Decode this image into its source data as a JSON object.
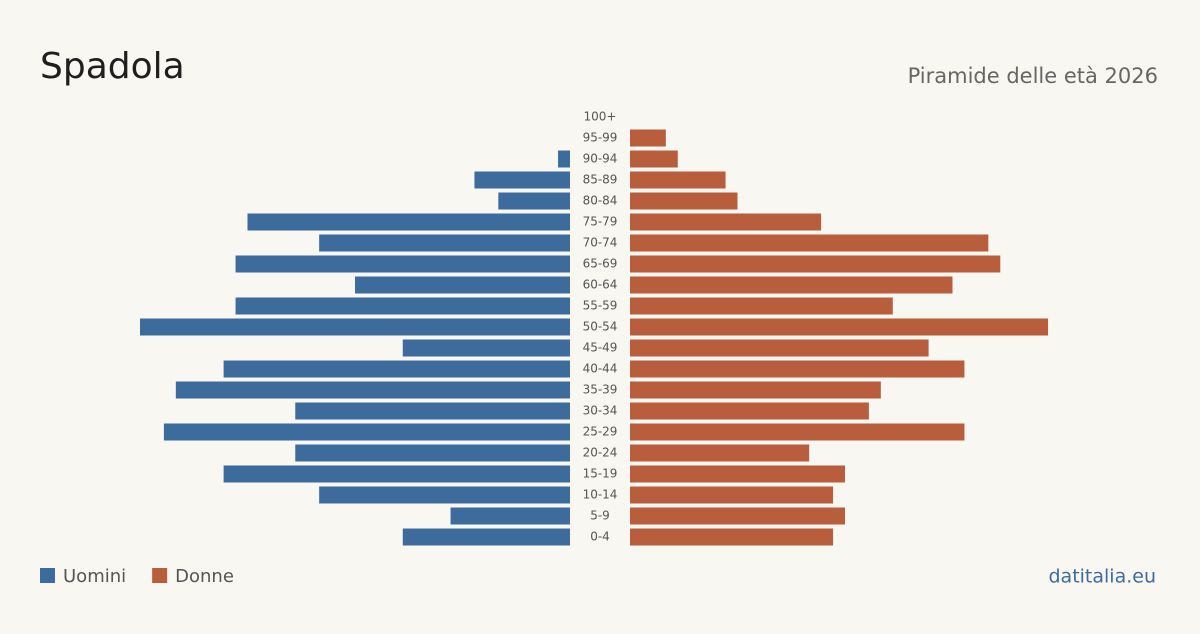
{
  "chart_data": {
    "type": "pyramid",
    "title": "Spadola",
    "subtitle": "Piramide delle età 2026",
    "source": "datitalia.eu",
    "categories": [
      "100+",
      "95-99",
      "90-94",
      "85-89",
      "80-84",
      "75-79",
      "70-74",
      "65-69",
      "60-64",
      "55-59",
      "50-54",
      "45-49",
      "40-44",
      "35-39",
      "30-34",
      "25-29",
      "20-24",
      "15-19",
      "10-14",
      "5-9",
      "0-4"
    ],
    "series": [
      {
        "name": "Uomini",
        "color": "#3d6b9c",
        "values": [
          0,
          0,
          1,
          8,
          6,
          27,
          21,
          28,
          18,
          28,
          36,
          14,
          29,
          33,
          23,
          34,
          23,
          29,
          21,
          10,
          14
        ]
      },
      {
        "name": "Donne",
        "color": "#b95e3d",
        "values": [
          0,
          3,
          4,
          8,
          9,
          16,
          30,
          31,
          27,
          22,
          35,
          25,
          28,
          21,
          20,
          28,
          15,
          18,
          17,
          18,
          17
        ]
      }
    ]
  }
}
